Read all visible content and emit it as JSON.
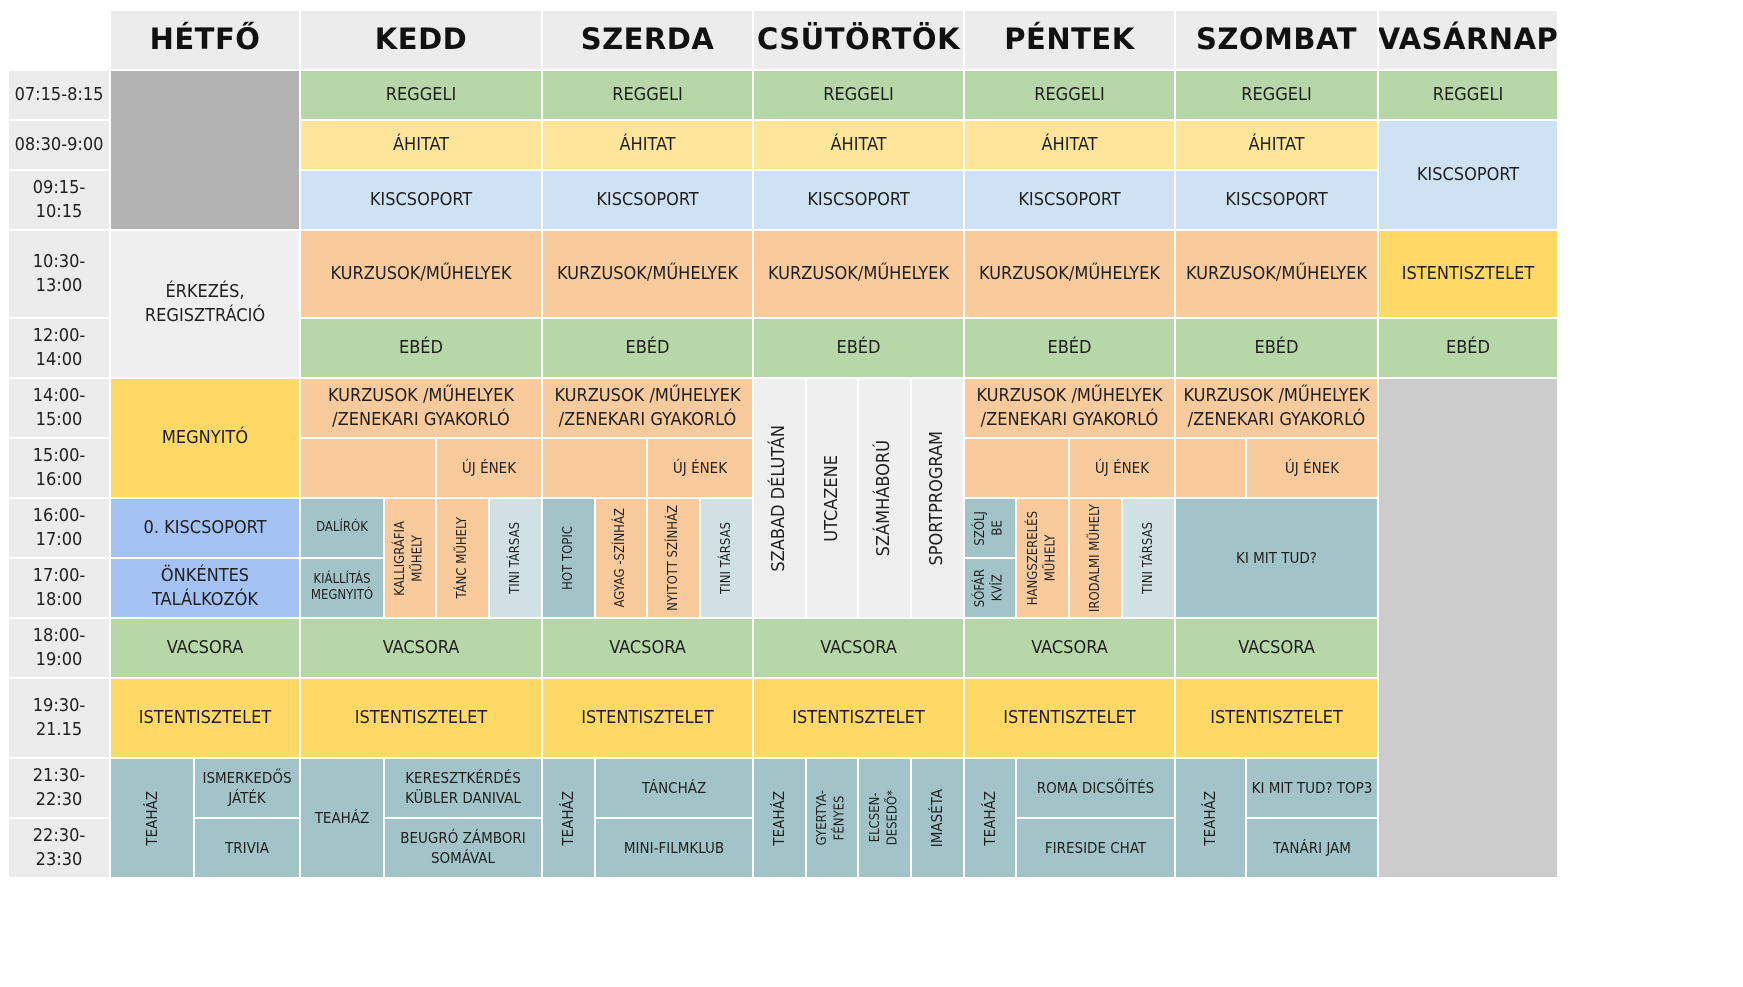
{
  "colors": {
    "header": "#ececec",
    "gray": "#b3b3b3",
    "gray_light": "#cccccc",
    "green": "#b7d7a8",
    "yellow": "#ffe599",
    "blue_light": "#cfe2f3",
    "orange": "#f9cb9c",
    "gold": "#ffd966",
    "light": "#efefef",
    "blue": "#a4c2f4",
    "teal": "#a2c4c9",
    "teal_light": "#d0e0e3"
  },
  "days": [
    "HÉTFŐ",
    "KEDD",
    "SZERDA",
    "CSÜTÖRTÖK",
    "PÉNTEK",
    "SZOMBAT",
    "VASÁRNAP"
  ],
  "times": [
    "07:15-8:15",
    "08:30-9:00",
    "09:15-10:15",
    "10:30-13:00",
    "12:00-14:00",
    "14:00-15:00",
    "15:00-16:00",
    "16:00-17:00",
    "17:00-18:00",
    "18:00-19:00",
    "19:30-21.15",
    "21:30-22:30",
    "22:30-23:30"
  ],
  "activities": {
    "reggeli": "REGGELI",
    "ahitat": "ÁHITAT",
    "kiscsoport": "KISCSOPORT",
    "kurzusok": "KURZUSOK/MŰHELYEK",
    "ebed": "EBÉD",
    "kurzusok_zenekari": "KURZUSOK /MŰHELYEK\n/ZENEKARI GYAKORLÓ",
    "uj_enek": "ÚJ ÉNEK",
    "vacsora": "VACSORA",
    "istentisztelet": "ISTENTISZTELET",
    "teahaz": "TEAHÁZ",
    "tini_tarsas": "TINI TÁRSAS",
    "erkezes": "ÉRKEZÉS,\nREGISZTRÁCIÓ",
    "megnyito": "MEGNYITÓ",
    "kiscsoport_0": "0. KISCSOPORT",
    "onkentes": "ÖNKÉNTES\nTALÁLKOZÓK",
    "ismerkedos": "ISMERKEDŐS\nJÁTÉK",
    "trivia": "TRIVIA",
    "dalirok": "DALÍRÓK",
    "kiallitas": "KIÁLLÍTÁS\nMEGNYITÓ",
    "kalligrafia": "KALLIGRÁFIA\nMŰHELY",
    "tanc_muhely": "TÁNC MŰHELY",
    "kereszt": "KERESZTKÉRDÉS\nKÜBLER DANIVAL",
    "beugro": "BEUGRÓ  ZÁMBORI\nSOMÁVAL",
    "hot_topic": "HOT TOPIC",
    "agyag": "AGYAG -SZÍNHÁZ",
    "nyitott": "NYITOTT SZÍNHÁZ",
    "tanchaz": "TÁNCHÁZ",
    "minifilm": "MINI-FILMKLUB",
    "szabad": "SZABAD DÉLUTÁN",
    "utcazene": "UTCAZENE",
    "szamhaboru": "SZÁMHÁBORÚ",
    "sport": "SPORTPROGRAM",
    "gyertya": "GYERTYA-\nFÉNYES",
    "elcsen": "ELCSEN-\nDESEDŐ*",
    "imaseta": "IMASÉTA",
    "szolj": "SZÓLJ\nBE",
    "sofar": "SÓFÁR\nKVÍZ",
    "hangszer": "HANGSZERELÉS\nMŰHELY",
    "irodalmi": "IRODALMI MŰHELY",
    "roma": "ROMA DICSŐÍTÉS",
    "fireside": "FIRESIDE CHAT",
    "kimittud": "KI MIT TUD?",
    "kimittud_top3": "KI MIT TUD? TOP3",
    "tanari": "TANÁRI JAM"
  }
}
